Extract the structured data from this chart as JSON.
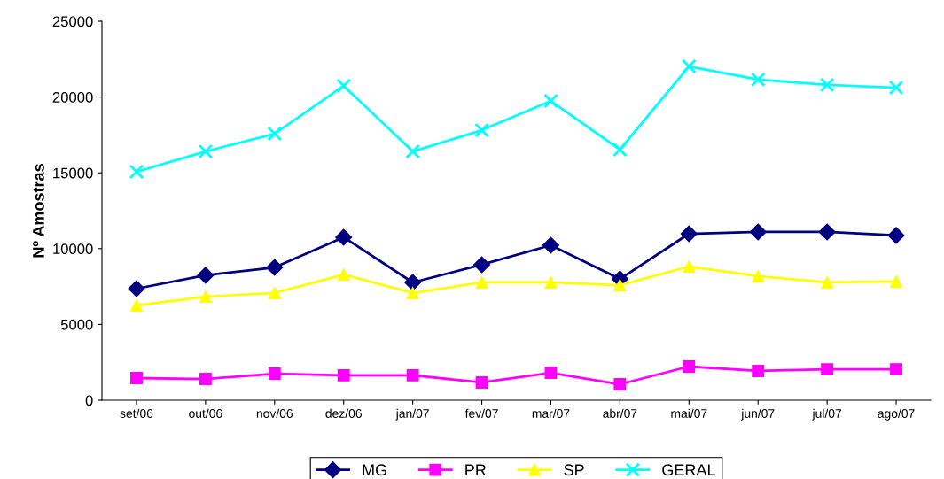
{
  "chart_data": {
    "type": "line",
    "ylabel": "Nº Amostras",
    "categories": [
      "set/06",
      "out/06",
      "nov/06",
      "dez/06",
      "jan/07",
      "fev/07",
      "mar/07",
      "abr/07",
      "mai/07",
      "jun/07",
      "jul/07",
      "ago/07"
    ],
    "series": [
      {
        "name": "MG",
        "color": "#000080",
        "marker": "diamond",
        "values": [
          7360,
          8240,
          8760,
          10750,
          7770,
          8940,
          10220,
          8000,
          10980,
          11100,
          11100,
          10870
        ]
      },
      {
        "name": "PR",
        "color": "#ff00ff",
        "marker": "square",
        "values": [
          1460,
          1400,
          1750,
          1640,
          1640,
          1170,
          1810,
          1050,
          2220,
          1930,
          2040,
          2040
        ]
      },
      {
        "name": "SP",
        "color": "#ffff00",
        "marker": "triangle",
        "values": [
          6250,
          6830,
          7070,
          8290,
          7070,
          7770,
          7770,
          7590,
          8820,
          8180,
          7770,
          7830
        ]
      },
      {
        "name": "GERAL",
        "color": "#00ffff",
        "marker": "cross",
        "values": [
          15070,
          16410,
          17580,
          20740,
          16410,
          17810,
          19740,
          16530,
          22020,
          21150,
          20800,
          20620
        ]
      }
    ],
    "ylim": [
      0,
      25000
    ],
    "yticks": [
      0,
      5000,
      10000,
      15000,
      20000,
      25000
    ],
    "grid": false,
    "legend": "bottom",
    "line_style": "solid"
  }
}
